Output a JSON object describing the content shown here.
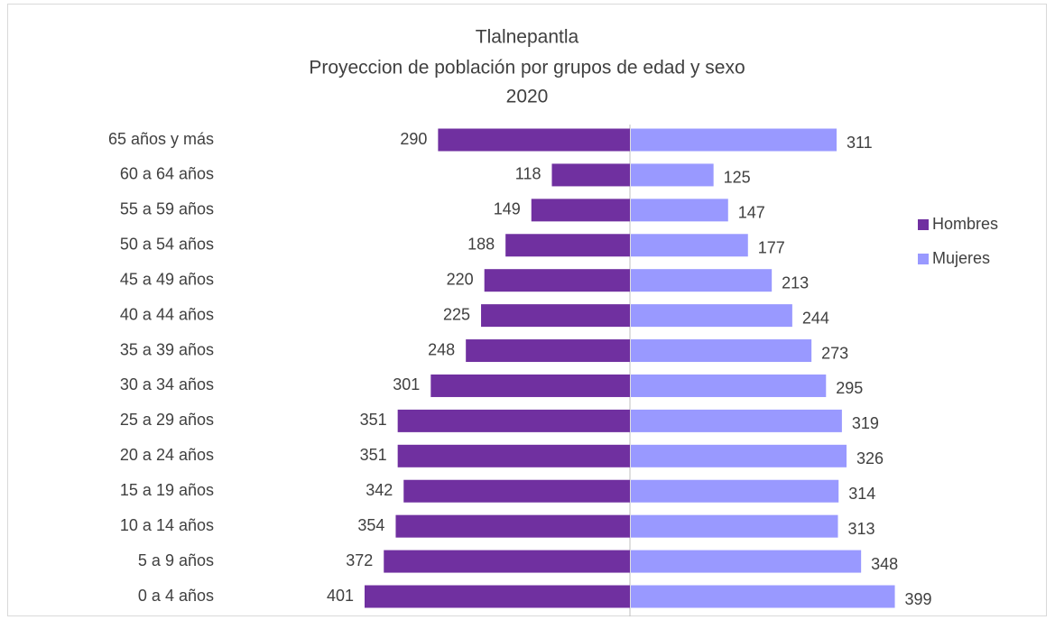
{
  "chart_data": {
    "type": "bar",
    "title": [
      "Tlalnepantla",
      "Proyeccion de población por grupos de edad y sexo",
      "2020"
    ],
    "categories": [
      "65 años y más",
      "60 a 64 años",
      "55 a 59 años",
      "50 a 54 años",
      "45 a 49 años",
      "40 a 44 años",
      "35 a 39 años",
      "30 a 34 años",
      "25 a 29 años",
      "20 a 24 años",
      "15 a 19 años",
      "10 a 14 años",
      "5 a 9 años",
      "0 a 4 años"
    ],
    "series": [
      {
        "name": "Hombres",
        "color": "#7030a0",
        "values": [
          290,
          118,
          149,
          188,
          220,
          225,
          248,
          301,
          351,
          351,
          342,
          354,
          372,
          401
        ]
      },
      {
        "name": "Mujeres",
        "color": "#9999ff",
        "values": [
          311,
          125,
          147,
          177,
          213,
          244,
          273,
          295,
          319,
          326,
          314,
          313,
          348,
          399
        ]
      }
    ],
    "legend": "right"
  }
}
